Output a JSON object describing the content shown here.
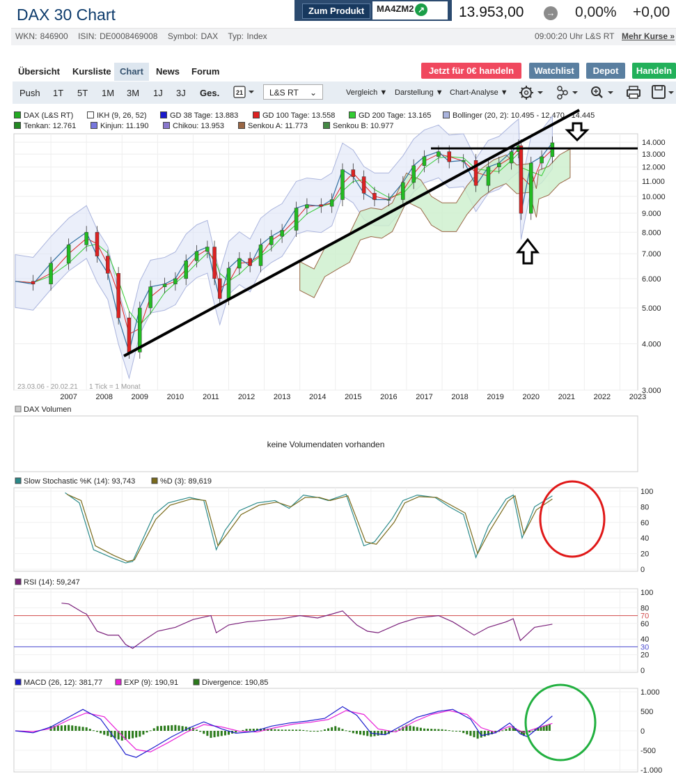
{
  "header": {
    "title": "DAX 30 Chart",
    "product_button": "Zum Produkt",
    "product_isin": "MA4ZM2",
    "price": "13.953,00",
    "change_pct": "0,00%",
    "change_abs": "+0,00",
    "meta": {
      "wkn": "WKN: 846900",
      "isin": "ISIN: DE0008469008",
      "symbol": "Symbol: DAX",
      "type": "Typ: Index"
    },
    "time": "09:00:20 Uhr L&S RT",
    "more_prices": "Mehr Kurse »"
  },
  "tabs": [
    "Übersicht",
    "Kursliste",
    "Chart",
    "News",
    "Forum"
  ],
  "active_tab": "Chart",
  "actions": {
    "trade_free": "Jetzt für 0€ handeln",
    "watchlist": "Watchlist",
    "depot": "Depot",
    "trade": "Handeln"
  },
  "toolbar": {
    "periods": [
      "Push",
      "1T",
      "5T",
      "1M",
      "3M",
      "1J",
      "3J",
      "Ges."
    ],
    "selected_period": "Ges.",
    "calendar_day": "21",
    "exchange": "L&S RT",
    "compare": "Vergleich",
    "display": "Darstellung",
    "analysis": "Chart-Analyse"
  },
  "colors": {
    "accent_red": "#f0485e",
    "accent_blue": "#5a7fa0",
    "accent_green": "#22b05a",
    "dax_line": "#2f6ea0",
    "stoch_k": "#2a8a8a",
    "stoch_d": "#7a6a1a",
    "rsi": "#7a1f7a",
    "macd": "#1a1acc",
    "exp": "#e81fd8",
    "divergence": "#2a7a1a",
    "annotation_red": "#e01818",
    "annotation_green": "#22b040"
  },
  "main_legend": [
    {
      "label": "DAX (L&S RT)",
      "color": "#22aa22"
    },
    {
      "label": "IKH (9, 26, 52)",
      "color": "#ffffff"
    },
    {
      "label": "GD 38 Tage: 13.883",
      "color": "#1a1acc"
    },
    {
      "label": "GD 100 Tage: 13.558",
      "color": "#dd2222"
    },
    {
      "label": "GD 200 Tage: 13.165",
      "color": "#33cc33"
    },
    {
      "label": "Bollinger (20, 2): 10.495 - 12.470 - 14.445",
      "color": "#aab4dd"
    },
    {
      "label": "Tenkan: 12.761",
      "color": "#228822"
    },
    {
      "label": "Kinjun: 11.190",
      "color": "#7777dd"
    },
    {
      "label": "Chikou: 13.953",
      "color": "#8877cc"
    },
    {
      "label": "Senkou A: 11.773",
      "color": "#996644"
    },
    {
      "label": "Senkou B: 10.977",
      "color": "#448844"
    }
  ],
  "chart_data": [
    {
      "type": "line",
      "note_range": "23.03.06 - 20.02.21",
      "note_tick": "1 Tick = 1 Monat",
      "xlabel": "",
      "ylabel": "",
      "y_scale": "log",
      "ylim": [
        3000,
        14500
      ],
      "x_ticks": [
        "2007",
        "2008",
        "2009",
        "2010",
        "2011",
        "2012",
        "2013",
        "2014",
        "2015",
        "2016",
        "2017",
        "2018",
        "2019",
        "2020",
        "2021",
        "2022",
        "2023"
      ],
      "y_ticks": [
        "3.000",
        "4.000",
        "5.000",
        "6.000",
        "7.000",
        "8.000",
        "9.000",
        "10.000",
        "11.000",
        "12.000",
        "13.000",
        "14.000"
      ],
      "series": [
        {
          "name": "DAX (L&S RT)",
          "x": [
            2006.0,
            2006.5,
            2007.0,
            2007.5,
            2008.0,
            2008.3,
            2008.6,
            2008.9,
            2009.2,
            2009.5,
            2009.8,
            2010.2,
            2010.5,
            2010.8,
            2011.1,
            2011.4,
            2011.6,
            2011.75,
            2012.0,
            2012.3,
            2012.6,
            2012.9,
            2013.2,
            2013.5,
            2013.9,
            2014.2,
            2014.6,
            2014.9,
            2015.2,
            2015.5,
            2015.8,
            2016.1,
            2016.5,
            2016.9,
            2017.2,
            2017.5,
            2017.9,
            2018.2,
            2018.6,
            2018.95,
            2019.3,
            2019.6,
            2019.95,
            2020.15,
            2020.22,
            2020.5,
            2020.8,
            2021.1
          ],
          "values": [
            5900,
            5800,
            6600,
            7400,
            8000,
            6900,
            6200,
            4700,
            3800,
            5000,
            5700,
            5800,
            6000,
            6700,
            7100,
            7300,
            6000,
            5300,
            6400,
            6800,
            6500,
            7400,
            7800,
            8100,
            9300,
            9500,
            9400,
            9800,
            11800,
            11300,
            10200,
            9800,
            9800,
            10900,
            12100,
            12800,
            13200,
            12400,
            12500,
            10700,
            12000,
            12300,
            13200,
            13700,
            9000,
            12300,
            12800,
            13950
          ]
        }
      ],
      "annotations": [
        "trendline-support",
        "horizontal-resistance-line",
        "arrow-down",
        "arrow-up"
      ]
    },
    {
      "type": "bar",
      "title": "DAX Volumen",
      "empty_message": "keine Volumendaten vorhanden"
    },
    {
      "type": "line",
      "legend": [
        "Slow Stochastic %K (14): 93,743",
        "%D (3): 89,619"
      ],
      "ylim": [
        0,
        100
      ],
      "y_ticks": [
        "0",
        "20",
        "40",
        "60",
        "80",
        "100"
      ],
      "series": [
        {
          "name": "Slow Stochastic %K (14)",
          "x": [
            2007.4,
            2007.8,
            2008.2,
            2008.7,
            2009.1,
            2009.3,
            2009.9,
            2010.3,
            2010.9,
            2011.3,
            2011.65,
            2011.9,
            2012.3,
            2012.8,
            2013.3,
            2013.7,
            2014.1,
            2014.5,
            2014.8,
            2015.3,
            2015.8,
            2016.1,
            2016.6,
            2016.9,
            2017.3,
            2017.8,
            2018.2,
            2018.6,
            2018.95,
            2019.3,
            2019.8,
            2020.0,
            2020.25,
            2020.6,
            2021.1
          ],
          "values": [
            98,
            85,
            25,
            15,
            8,
            10,
            70,
            85,
            92,
            88,
            25,
            50,
            75,
            85,
            88,
            78,
            95,
            92,
            88,
            96,
            30,
            35,
            65,
            88,
            95,
            92,
            80,
            70,
            15,
            55,
            90,
            95,
            40,
            80,
            94
          ]
        },
        {
          "name": "%D (3)",
          "x": [
            2007.45,
            2007.85,
            2008.25,
            2008.75,
            2009.15,
            2009.35,
            2009.95,
            2010.35,
            2010.95,
            2011.35,
            2011.7,
            2011.95,
            2012.35,
            2012.85,
            2013.35,
            2013.75,
            2014.15,
            2014.55,
            2014.85,
            2015.35,
            2015.85,
            2016.15,
            2016.65,
            2016.95,
            2017.35,
            2017.85,
            2018.25,
            2018.65,
            2019.0,
            2019.35,
            2019.85,
            2020.05,
            2020.3,
            2020.65,
            2021.1
          ],
          "values": [
            96,
            88,
            30,
            18,
            10,
            12,
            64,
            82,
            90,
            88,
            30,
            45,
            70,
            82,
            86,
            80,
            92,
            92,
            88,
            94,
            35,
            32,
            60,
            85,
            93,
            92,
            82,
            72,
            20,
            50,
            87,
            94,
            45,
            76,
            90
          ]
        }
      ]
    },
    {
      "type": "line",
      "legend": [
        "RSI (14): 59,247"
      ],
      "ylim": [
        0,
        100
      ],
      "y_ticks": [
        "0",
        "20",
        "40",
        "60",
        "80",
        "100"
      ],
      "thresholds": [
        {
          "label": "70",
          "value": 70
        },
        {
          "label": "30",
          "value": 30
        }
      ],
      "series": [
        {
          "name": "RSI (14)",
          "x": [
            2007.3,
            2007.5,
            2007.9,
            2008.0,
            2008.3,
            2008.6,
            2008.9,
            2009.1,
            2009.3,
            2009.6,
            2010.0,
            2010.5,
            2011.0,
            2011.5,
            2011.65,
            2012.0,
            2012.5,
            2013.0,
            2013.5,
            2014.0,
            2014.5,
            2014.9,
            2015.2,
            2015.6,
            2015.9,
            2016.2,
            2016.8,
            2017.3,
            2017.9,
            2018.3,
            2018.9,
            2019.3,
            2019.8,
            2020.0,
            2020.2,
            2020.6,
            2021.1
          ],
          "values": [
            86,
            85,
            74,
            72,
            50,
            45,
            45,
            33,
            28,
            38,
            50,
            55,
            65,
            70,
            48,
            58,
            62,
            64,
            66,
            70,
            67,
            72,
            76,
            58,
            50,
            48,
            60,
            67,
            70,
            62,
            45,
            55,
            62,
            66,
            38,
            55,
            59
          ]
        }
      ]
    },
    {
      "type": "bar",
      "legend": [
        "MACD (26, 12): 381,77",
        "EXP (9): 190,91",
        "Divergence: 190,85"
      ],
      "ylim": [
        -1000,
        1000
      ],
      "y_ticks": [
        "-1.000",
        "-500",
        "0",
        "500",
        "1.000"
      ],
      "series": [
        {
          "name": "MACD (26, 12)",
          "x": [
            2006.0,
            2006.5,
            2007.0,
            2007.5,
            2007.9,
            2008.4,
            2008.8,
            2009.1,
            2009.4,
            2009.9,
            2010.4,
            2010.9,
            2011.3,
            2011.8,
            2012.2,
            2012.7,
            2013.2,
            2013.7,
            2014.2,
            2014.7,
            2015.2,
            2015.6,
            2016.0,
            2016.4,
            2016.9,
            2017.3,
            2017.9,
            2018.3,
            2018.8,
            2019.1,
            2019.5,
            2019.9,
            2020.2,
            2020.4,
            2020.8,
            2021.1
          ],
          "values": [
            0,
            -50,
            100,
            350,
            550,
            300,
            -200,
            -600,
            -680,
            -420,
            -150,
            80,
            230,
            50,
            -60,
            -20,
            120,
            200,
            250,
            320,
            620,
            400,
            -60,
            -100,
            150,
            350,
            500,
            550,
            300,
            -120,
            -50,
            200,
            -80,
            -150,
            150,
            382
          ]
        },
        {
          "name": "EXP (9)",
          "x": [
            2006.0,
            2006.5,
            2007.0,
            2007.5,
            2008.0,
            2008.5,
            2009.0,
            2009.4,
            2009.8,
            2010.3,
            2010.8,
            2011.3,
            2011.8,
            2012.3,
            2012.8,
            2013.3,
            2013.8,
            2014.3,
            2014.8,
            2015.3,
            2015.8,
            2016.2,
            2016.7,
            2017.2,
            2017.7,
            2018.2,
            2018.7,
            2019.1,
            2019.5,
            2019.9,
            2020.3,
            2020.7,
            2021.1
          ],
          "values": [
            0,
            -20,
            60,
            280,
            460,
            360,
            -120,
            -480,
            -540,
            -300,
            -40,
            160,
            100,
            -10,
            -30,
            80,
            170,
            220,
            290,
            520,
            420,
            50,
            -30,
            230,
            420,
            520,
            420,
            80,
            -40,
            120,
            -40,
            80,
            191
          ]
        },
        {
          "name": "Divergence",
          "x": [
            2007.0,
            2007.5,
            2008.0,
            2008.5,
            2009.0,
            2009.5,
            2010.0,
            2010.5,
            2011.0,
            2011.5,
            2012.0,
            2012.5,
            2013.0,
            2013.5,
            2014.0,
            2014.5,
            2015.0,
            2015.5,
            2016.0,
            2016.5,
            2017.0,
            2017.5,
            2018.0,
            2018.5,
            2019.0,
            2019.5,
            2020.0,
            2020.3,
            2020.7,
            2021.1
          ],
          "values": [
            120,
            150,
            90,
            -100,
            -250,
            -150,
            120,
            150,
            80,
            -180,
            -100,
            50,
            60,
            30,
            30,
            -20,
            120,
            -60,
            -150,
            -80,
            150,
            60,
            40,
            -20,
            -200,
            -60,
            120,
            -130,
            90,
            191
          ]
        }
      ]
    }
  ]
}
